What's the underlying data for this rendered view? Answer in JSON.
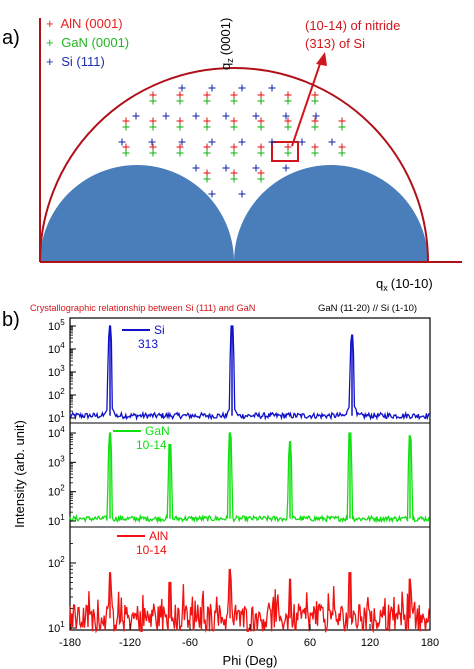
{
  "panel_a": {
    "label": "a)",
    "legend": [
      {
        "marker": "+",
        "text": "AlN (0001)",
        "color": "#e8201f"
      },
      {
        "marker": "+",
        "text": "GaN (0001)",
        "color": "#22b522"
      },
      {
        "marker": "+",
        "text": "Si (111)",
        "color": "#1f2fb0"
      }
    ],
    "annotation": {
      "line1": "(10-14) of nitride",
      "line2": "(313) of Si",
      "color": "#d0161c"
    },
    "y_axis_label": "q",
    "y_axis_sub": "z",
    "y_axis_paren": "(0001)",
    "x_axis_label": "q",
    "x_axis_sub": "x",
    "x_axis_paren": "(10-10)",
    "colors": {
      "arc": "#b01018",
      "shadow": "#4a7ebb"
    }
  },
  "panel_b": {
    "label": "b)",
    "caption": "Crystallographic relationship between Si (111) and GaN",
    "caption_color": "#d0161c",
    "relation": "GaN (11-20) // Si (1-10)",
    "y_axis_label": "Intensity (arb. unit)",
    "x_axis_label": "Phi (Deg)",
    "legends": [
      {
        "name": "Si",
        "sub": "313",
        "color": "#1010c8"
      },
      {
        "name": "GaN",
        "sub": "10-14",
        "color": "#10e010"
      },
      {
        "name": "AlN",
        "sub": "10-14",
        "color": "#f01010"
      }
    ],
    "y_ticks": {
      "top": [
        "10",
        "10",
        "10",
        "10",
        "10"
      ],
      "top_exp": [
        "1",
        "2",
        "3",
        "4",
        "5"
      ],
      "middle": [
        "10",
        "10",
        "10",
        "10"
      ],
      "middle_exp": [
        "1",
        "2",
        "3",
        "4"
      ],
      "bottom": [
        "10",
        "10"
      ],
      "bottom_exp": [
        "1",
        "2"
      ]
    }
  },
  "chart_data": [
    {
      "type": "scatter",
      "panel": "a",
      "xlabel": "qx (10-10)",
      "ylabel": "qz (0001)",
      "series": [
        {
          "name": "AlN (0001)",
          "color": "#e8201f"
        },
        {
          "name": "GaN (0001)",
          "color": "#22b522"
        },
        {
          "name": "Si (111)",
          "color": "#1f2fb0"
        }
      ]
    },
    {
      "type": "line",
      "panel": "b",
      "xlabel": "Phi (Deg)",
      "ylabel": "Intensity (arb. unit)",
      "x_ticks": [
        -180,
        -120,
        -60,
        0,
        60,
        120,
        180
      ],
      "xlim": [
        -180,
        180
      ],
      "yscale": "log",
      "series": [
        {
          "name": "Si",
          "sub": "313",
          "color": "#1010c8",
          "ylim_exp": [
            1,
            5
          ],
          "baseline_exp": 1.1,
          "noise_exp": 0.25,
          "peaks": [
            {
              "x": -140,
              "exp": 5.0
            },
            {
              "x": -18,
              "exp": 5.0
            },
            {
              "x": 102,
              "exp": 4.6
            }
          ],
          "shoulders": [
            {
              "x": -140,
              "exp": 1.6
            },
            {
              "x": -18,
              "exp": 1.6
            },
            {
              "x": 102,
              "exp": 1.7
            }
          ]
        },
        {
          "name": "GaN",
          "sub": "10-14",
          "color": "#10e010",
          "ylim_exp": [
            1,
            4
          ],
          "baseline_exp": 1.08,
          "noise_exp": 0.18,
          "peaks": [
            {
              "x": -140,
              "exp": 4.0
            },
            {
              "x": -80,
              "exp": 3.6
            },
            {
              "x": -20,
              "exp": 4.0
            },
            {
              "x": 40,
              "exp": 3.7
            },
            {
              "x": 100,
              "exp": 4.0
            },
            {
              "x": 160,
              "exp": 3.9
            }
          ],
          "shoulders": []
        },
        {
          "name": "AlN",
          "sub": "10-14",
          "color": "#f01010",
          "ylim_exp": [
            1,
            2.4
          ],
          "baseline_exp": 1.15,
          "noise_exp": 0.45,
          "peaks": [
            {
              "x": -140,
              "exp": 1.85
            },
            {
              "x": -80,
              "exp": 1.7
            },
            {
              "x": -20,
              "exp": 1.9
            },
            {
              "x": 40,
              "exp": 1.75
            },
            {
              "x": 100,
              "exp": 1.85
            },
            {
              "x": 160,
              "exp": 1.75
            }
          ],
          "shoulders": []
        }
      ]
    }
  ]
}
